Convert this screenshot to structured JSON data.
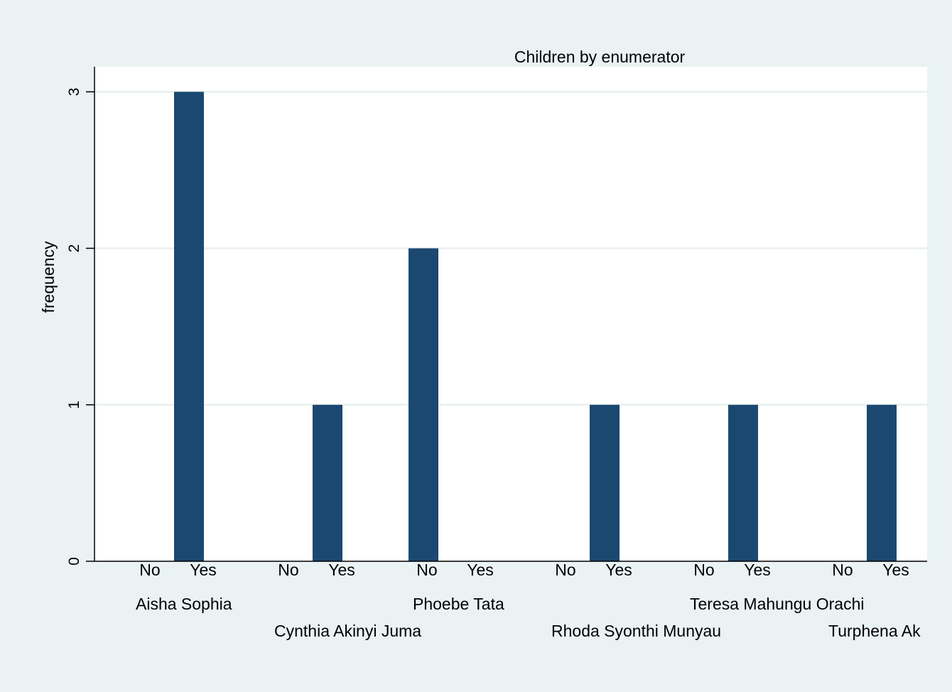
{
  "chart_data": {
    "type": "bar",
    "title": "Children by enumerator",
    "xlabel": "",
    "ylabel": "frequency",
    "ylim": [
      0,
      3.16
    ],
    "yticks": [
      0,
      1,
      2,
      3
    ],
    "grid": true,
    "legend": "none",
    "colors": {
      "bar": "#1b4870",
      "plot_background": "#ffffff",
      "page_background": "#eaf2f3",
      "grid": "#e8efef"
    },
    "subcategories": [
      "No",
      "Yes"
    ],
    "groups": [
      {
        "name": "Aisha Sophia",
        "values": [
          0,
          3
        ]
      },
      {
        "name": "Cynthia Akinyi Juma",
        "values": [
          0,
          1
        ]
      },
      {
        "name": "Phoebe Tata",
        "values": [
          2,
          0
        ]
      },
      {
        "name": "Rhoda Syonthi Munyau",
        "values": [
          0,
          1
        ]
      },
      {
        "name": "Teresa Mahungu Orachi",
        "values": [
          0,
          1
        ]
      },
      {
        "name": "Turphena Ak",
        "values": [
          0,
          1
        ]
      }
    ]
  }
}
